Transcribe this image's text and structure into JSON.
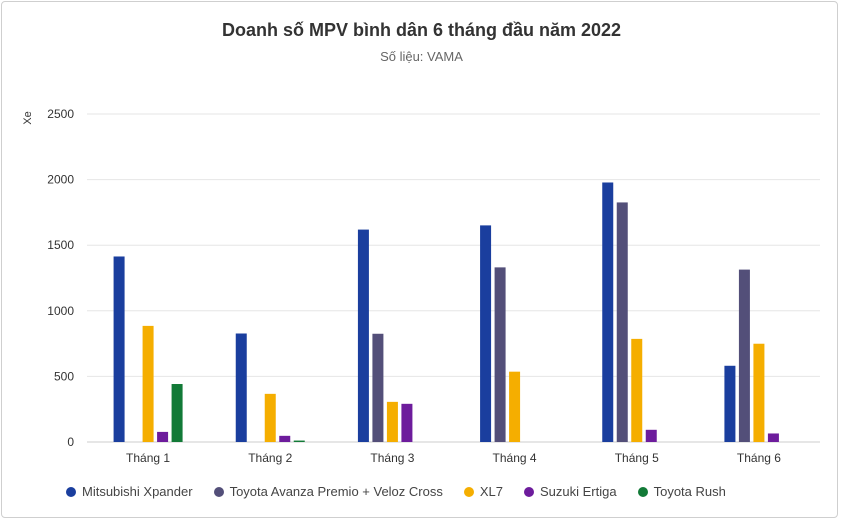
{
  "chart_data": {
    "type": "bar",
    "title": "Doanh số MPV bình dân 6 tháng đầu năm 2022",
    "subtitle": "Số liệu: VAMA",
    "xlabel": "",
    "ylabel": "Xe",
    "ylim": [
      0,
      2500
    ],
    "yticks": [
      "0",
      "500",
      "1000",
      "1500",
      "2000",
      "2500"
    ],
    "grid": true,
    "legend_position": "bottom",
    "categories": [
      "Tháng 1",
      "Tháng 2",
      "Tháng 3",
      "Tháng 4",
      "Tháng 5",
      "Tháng 6"
    ],
    "series": [
      {
        "name": "Mitsubishi Xpander",
        "color": "#1a3e9e",
        "values": [
          1414,
          827,
          1619,
          1651,
          1978,
          581
        ]
      },
      {
        "name": "Toyota Avanza Premio + Veloz Cross",
        "color": "#534f79",
        "values": [
          0,
          0,
          825,
          1331,
          1826,
          1314
        ]
      },
      {
        "name": "XL7",
        "color": "#f5ae00",
        "values": [
          885,
          367,
          306,
          536,
          786,
          749
        ]
      },
      {
        "name": "Suzuki Ertiga",
        "color": "#6d1c9c",
        "values": [
          77,
          47,
          291,
          0,
          93,
          65
        ]
      },
      {
        "name": "Toyota Rush",
        "color": "#127a37",
        "values": [
          442,
          11,
          0,
          0,
          0,
          0
        ]
      }
    ]
  }
}
